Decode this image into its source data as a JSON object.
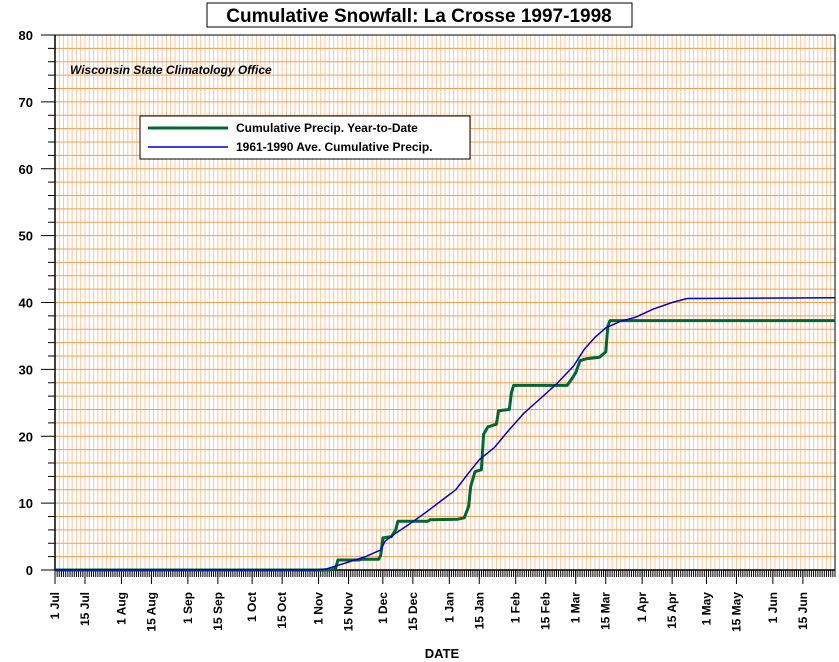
{
  "chart_data": {
    "type": "line",
    "title": "Cumulative Snowfall: La Crosse 1997-1998",
    "annotation": "Wisconsin State Climatology Office",
    "xlabel": "DATE",
    "ylabel": "",
    "ylim": [
      0,
      80
    ],
    "y_ticks": [
      "0",
      "10",
      "20",
      "30",
      "40",
      "50",
      "60",
      "70",
      "80"
    ],
    "x_tick_labels": [
      "1 Jul",
      "15 Jul",
      "1 Aug",
      "15 Aug",
      "1 Sep",
      "15 Sep",
      "1 Oct",
      "15 Oct",
      "1 Nov",
      "15 Nov",
      "1 Dec",
      "15 Dec",
      "1 Jan",
      "15 Jan",
      "1 Feb",
      "15 Feb",
      "1 Mar",
      "15 Mar",
      "1 Apr",
      "15 Apr",
      "1 May",
      "15 May",
      "1 Jun",
      "15 Jun"
    ],
    "x_tick_dates": [
      "1997-07-01",
      "1997-07-15",
      "1997-08-01",
      "1997-08-15",
      "1997-09-01",
      "1997-09-15",
      "1997-10-01",
      "1997-10-15",
      "1997-11-01",
      "1997-11-15",
      "1997-12-01",
      "1997-12-15",
      "1998-01-01",
      "1998-01-15",
      "1998-02-01",
      "1998-02-15",
      "1998-03-01",
      "1998-03-15",
      "1998-04-01",
      "1998-04-15",
      "1998-05-01",
      "1998-05-15",
      "1998-06-01",
      "1998-06-15"
    ],
    "xlim": [
      "1997-07-01",
      "1998-06-30"
    ],
    "grid": true,
    "legend_position": "upper-left",
    "series": [
      {
        "name": "Cumulative Precip. Year-to-Date",
        "color": "#006633",
        "points": [
          [
            "1997-07-01",
            0
          ],
          [
            "1997-11-07",
            0
          ],
          [
            "1997-11-09",
            0.3
          ],
          [
            "1997-11-10",
            1.5
          ],
          [
            "1997-11-20",
            1.5
          ],
          [
            "1997-11-21",
            1.6
          ],
          [
            "1997-11-29",
            1.6
          ],
          [
            "1997-11-30",
            2.2
          ],
          [
            "1997-12-01",
            4.8
          ],
          [
            "1997-12-05",
            5.0
          ],
          [
            "1997-12-07",
            6.0
          ],
          [
            "1997-12-08",
            7.3
          ],
          [
            "1997-12-22",
            7.3
          ],
          [
            "1997-12-23",
            7.5
          ],
          [
            "1998-01-05",
            7.6
          ],
          [
            "1998-01-08",
            7.8
          ],
          [
            "1998-01-10",
            9.5
          ],
          [
            "1998-01-11",
            12.5
          ],
          [
            "1998-01-13",
            14.7
          ],
          [
            "1998-01-16",
            15.0
          ],
          [
            "1998-01-17",
            20.3
          ],
          [
            "1998-01-19",
            21.4
          ],
          [
            "1998-01-23",
            21.8
          ],
          [
            "1998-01-24",
            23.8
          ],
          [
            "1998-01-29",
            24.0
          ],
          [
            "1998-01-30",
            26.5
          ],
          [
            "1998-01-31",
            27.6
          ],
          [
            "1998-02-25",
            27.6
          ],
          [
            "1998-02-27",
            28.5
          ],
          [
            "1998-03-01",
            29.5
          ],
          [
            "1998-03-03",
            31.3
          ],
          [
            "1998-03-06",
            31.6
          ],
          [
            "1998-03-12",
            31.8
          ],
          [
            "1998-03-15",
            32.6
          ],
          [
            "1998-03-16",
            36.5
          ],
          [
            "1998-03-17",
            37.3
          ],
          [
            "1998-06-30",
            37.3
          ]
        ]
      },
      {
        "name": "1961-1990 Ave. Cumulative Precip.",
        "color": "#0000cc",
        "points": [
          [
            "1997-07-01",
            0
          ],
          [
            "1997-10-31",
            0
          ],
          [
            "1997-11-05",
            0.2
          ],
          [
            "1997-11-08",
            0.5
          ],
          [
            "1997-11-15",
            1.2
          ],
          [
            "1997-11-23",
            2.0
          ],
          [
            "1997-11-30",
            3.0
          ],
          [
            "1997-12-02",
            4.3
          ],
          [
            "1997-12-07",
            5.5
          ],
          [
            "1997-12-14",
            7.0
          ],
          [
            "1997-12-21",
            8.6
          ],
          [
            "1997-12-28",
            10.3
          ],
          [
            "1998-01-04",
            12.0
          ],
          [
            "1998-01-10",
            14.5
          ],
          [
            "1998-01-15",
            16.5
          ],
          [
            "1998-01-22",
            18.3
          ],
          [
            "1998-01-29",
            21.0
          ],
          [
            "1998-02-05",
            23.5
          ],
          [
            "1998-02-12",
            25.5
          ],
          [
            "1998-02-20",
            27.8
          ],
          [
            "1998-02-28",
            30.5
          ],
          [
            "1998-03-05",
            33.0
          ],
          [
            "1998-03-10",
            34.8
          ],
          [
            "1998-03-15",
            36.2
          ],
          [
            "1998-03-22",
            37.2
          ],
          [
            "1998-03-29",
            37.8
          ],
          [
            "1998-04-06",
            39.0
          ],
          [
            "1998-04-15",
            40.0
          ],
          [
            "1998-04-22",
            40.6
          ],
          [
            "1998-06-30",
            40.7
          ]
        ]
      }
    ]
  }
}
